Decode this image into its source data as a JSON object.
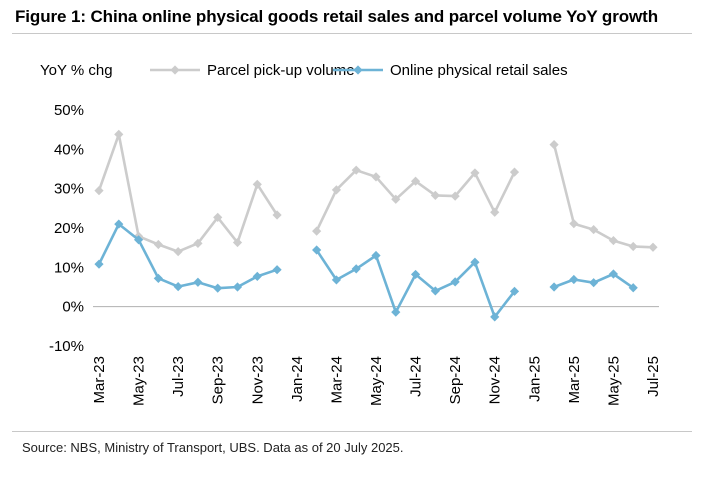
{
  "title": "Figure 1: China online physical goods retail sales and parcel volume YoY growth",
  "source": "Source: NBS, Ministry of Transport, UBS. Data as of 20 July 2025.",
  "chart_data": {
    "type": "line",
    "ylabel": "YoY % chg",
    "xlabel": "",
    "ylim": [
      -10,
      50
    ],
    "yticks": [
      "50%",
      "40%",
      "30%",
      "20%",
      "10%",
      "0%",
      "-10%"
    ],
    "ytick_values": [
      50,
      40,
      30,
      20,
      10,
      0,
      -10
    ],
    "x": [
      "Mar-23",
      "Apr-23",
      "May-23",
      "Jun-23",
      "Jul-23",
      "Aug-23",
      "Sep-23",
      "Oct-23",
      "Nov-23",
      "Dec-23",
      "Jan-24",
      "Feb-24",
      "Mar-24",
      "Apr-24",
      "May-24",
      "Jun-24",
      "Jul-24",
      "Aug-24",
      "Sep-24",
      "Oct-24",
      "Nov-24",
      "Dec-24",
      "Jan-25",
      "Feb-25",
      "Mar-25",
      "Apr-25",
      "May-25",
      "Jun-25",
      "Jul-25"
    ],
    "xtick_labels": [
      "Mar-23",
      "May-23",
      "Jul-23",
      "Sep-23",
      "Nov-23",
      "Jan-24",
      "Mar-24",
      "May-24",
      "Jul-24",
      "Sep-24",
      "Nov-24",
      "Jan-25",
      "Mar-25",
      "May-25",
      "Jul-25"
    ],
    "legend_position": "top",
    "grid": false,
    "series": [
      {
        "name": "Parcel pick-up volume",
        "color": "#cccccc",
        "marker": "diamond",
        "values": [
          29.5,
          43.8,
          17.9,
          15.8,
          14.0,
          16.1,
          22.7,
          16.3,
          31.1,
          23.3,
          null,
          19.2,
          29.7,
          34.7,
          33.0,
          27.3,
          31.9,
          28.3,
          28.1,
          34.0,
          24.0,
          34.2,
          null,
          41.2,
          21.1,
          19.6,
          16.8,
          15.3,
          15.1
        ]
      },
      {
        "name": "Online physical retail sales",
        "color": "#6db3d6",
        "marker": "diamond",
        "values": [
          10.8,
          21.0,
          17.0,
          7.2,
          5.1,
          6.2,
          4.7,
          5.0,
          7.7,
          9.4,
          null,
          14.4,
          6.8,
          9.6,
          13.0,
          -1.4,
          8.2,
          4.0,
          6.3,
          11.3,
          -2.6,
          3.9,
          null,
          5.0,
          6.9,
          6.1,
          8.3,
          4.8,
          null
        ]
      }
    ]
  }
}
